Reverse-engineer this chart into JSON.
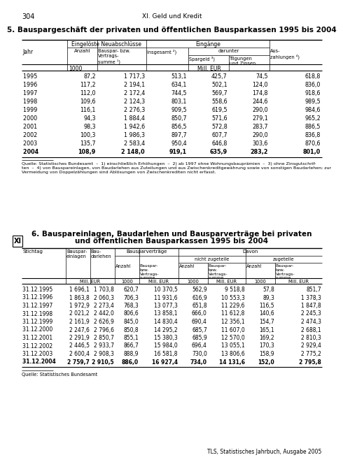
{
  "page_number": "304",
  "chapter_title": "XI. Geld und Kredit",
  "xi_label": "XI",
  "table1_title": "5. Bauspargeschäft der privaten und öffentlichen Bausparkassen 1995 bis 2004",
  "table1_footnote": "Quelle: Statistisches Bundesamt  –  1) einschließlich Erhöhungen  –  2) ab 1997 ohne Wohnungsbauprämien  –  3) ohne Zinsgutschrif-\nten  –  4) von Bauspareinlagen, von Baudarlehen aus Zuteilungen und aus Zwischenkreditgewährung sowie von sonstigen Baudarlehen; zur\nVermeidung von Doppelzählungen sind Ablösungen von Zwischenkrediten nicht erfasst.",
  "table1_data": [
    [
      "1995      ",
      "87,2",
      "1 717,3",
      "513,1",
      "425,7",
      "74,5",
      "618,8"
    ],
    [
      "1996      ",
      "117,2",
      "2 194,1",
      "634,1",
      "502,1",
      "124,0",
      "836,0"
    ],
    [
      "1997      ",
      "112,0",
      "2 172,4",
      "744,5",
      "569,7",
      "174,8",
      "918,6"
    ],
    [
      "1998      ",
      "109,6",
      "2 124,3",
      "803,1",
      "558,6",
      "244,6",
      "989,5"
    ],
    [
      "1999      ",
      "116,1",
      "2 276,3",
      "909,5",
      "619,5",
      "290,0",
      "984,6"
    ],
    [
      "2000      ",
      "94,3",
      "1 884,4",
      "850,7",
      "571,6",
      "279,1",
      "965,2"
    ],
    [
      "2001      ",
      "98,3",
      "1 942,6",
      "856,5",
      "572,8",
      "283,7",
      "886,5"
    ],
    [
      "2002      ",
      "100,3",
      "1 986,3",
      "897,7",
      "607,7",
      "290,0",
      "836,8"
    ],
    [
      "2003      ",
      "135,7",
      "2 583,4",
      "950,4",
      "646,8",
      "303,6",
      "870,6"
    ],
    [
      "2004      ",
      "108,9",
      "2 148,0",
      "919,1",
      "635,9",
      "283,2",
      "801,0"
    ]
  ],
  "table2_title_line1": "6. Bauspareinlagen, Baudarlehen und Bausparverträge bei privaten",
  "table2_title_line2": "und öffentlichen Bausparkassen 1995 bis 2004",
  "table2_footnote": "Quelle: Statistisches Bundesamt",
  "table2_data": [
    [
      "31.12.1995    ",
      "1 696,1",
      "1 703,8",
      "620,7",
      "10 370,5",
      "562,9",
      "9 518,8",
      "57,8",
      "851,7"
    ],
    [
      "31.12.1996    ",
      "1 863,8",
      "2 060,3",
      "706,3",
      "11 931,6",
      "616,9",
      "10 553,3",
      "89,3",
      "1 378,3"
    ],
    [
      "31.12.1997    ",
      "1 972,9",
      "2 273,4",
      "768,3",
      "13 077,3",
      "651,8",
      "11 229,6",
      "116,5",
      "1 847,8"
    ],
    [
      "31.12.1998    ",
      "2 021,2",
      "2 442,0",
      "806,6",
      "13 858,1",
      "666,0",
      "11 612,8",
      "140,6",
      "2 245,3"
    ],
    [
      "31.12.1999    ",
      "2 161,9",
      "2 626,9",
      "845,0",
      "14 830,4",
      "690,4",
      "12 356,1",
      "154,7",
      "2 474,3"
    ],
    [
      "31.12.2000    ",
      "2 247,6",
      "2 796,6",
      "850,8",
      "14 295,2",
      "685,7",
      "11 607,0",
      "165,1",
      "2 688,1"
    ],
    [
      "31.12.2001    ",
      "2 291,9",
      "2 850,7",
      "855,1",
      "15 380,3",
      "685,9",
      "12 570,0",
      "169,2",
      "2 810,3"
    ],
    [
      "31.12.2002    ",
      "2 446,5",
      "2 933,7",
      "866,7",
      "15 984,0",
      "696,4",
      "13 055,1",
      "170,3",
      "2 929,4"
    ],
    [
      "31.12.2003    ",
      "2 600,4",
      "2 908,3",
      "888,9",
      "16 581,8",
      "730,0",
      "13 806,6",
      "158,9",
      "2 775,2"
    ],
    [
      "31.12.2004    ",
      "2 759,7",
      "2 910,5",
      "886,0",
      "16 927,4",
      "734,0",
      "14 131,6",
      "152,0",
      "2 795,8"
    ]
  ],
  "bottom_right": "TLS, Statistisches Jahrbuch, Ausgabe 2005"
}
